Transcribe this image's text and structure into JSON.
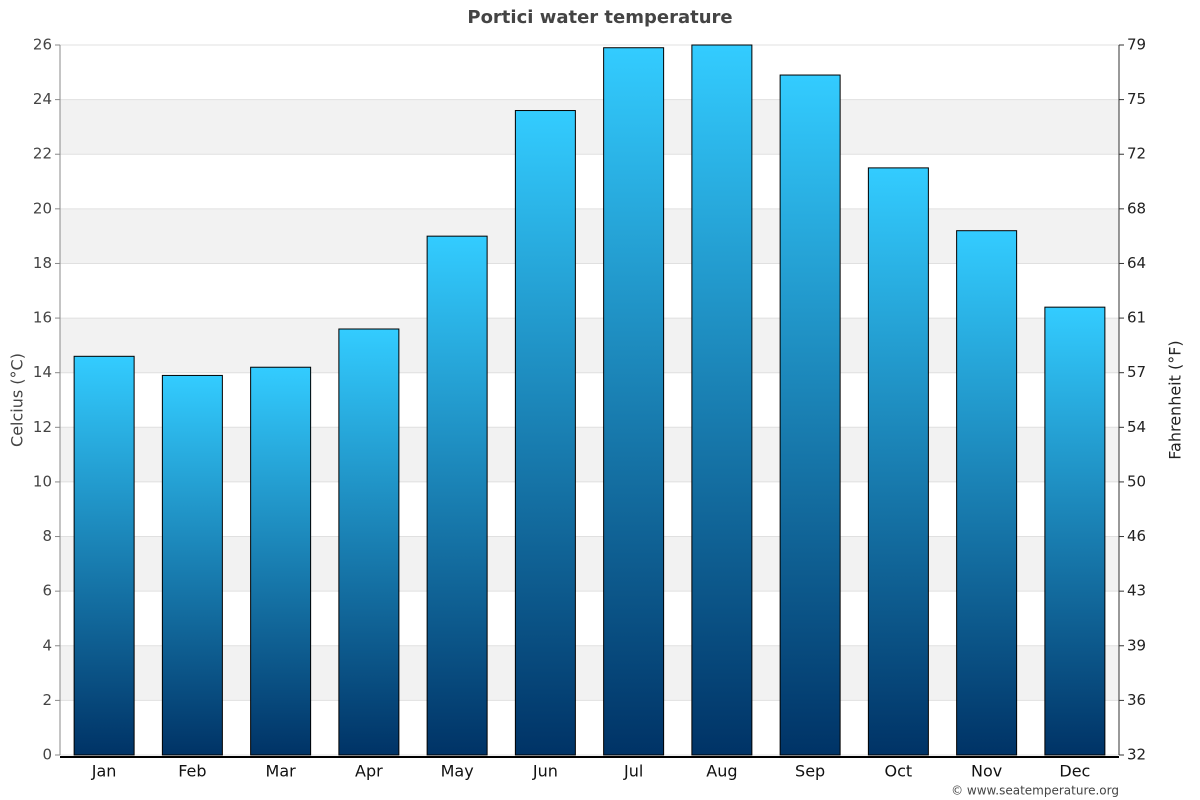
{
  "chart_data": {
    "type": "bar",
    "title": "Portici water temperature",
    "categories": [
      "Jan",
      "Feb",
      "Mar",
      "Apr",
      "May",
      "Jun",
      "Jul",
      "Aug",
      "Sep",
      "Oct",
      "Nov",
      "Dec"
    ],
    "values": [
      14.6,
      13.9,
      14.2,
      15.6,
      19.0,
      23.6,
      25.9,
      26.0,
      24.9,
      21.5,
      19.2,
      16.4
    ],
    "color": [
      "#33ccff",
      "#003366"
    ],
    "y_label": "Celcius (°C)",
    "y2_label": "Fahrenheit (°F)",
    "ylim": [
      0,
      26
    ],
    "yticks": [
      0,
      2,
      4,
      6,
      8,
      10,
      12,
      14,
      16,
      18,
      20,
      22,
      24,
      26
    ],
    "y2lim": [
      32,
      78.8
    ],
    "y2ticks": [
      32,
      {
        "value": 35.6,
        "label": "36"
      },
      {
        "value": 39.2,
        "label": "39"
      },
      {
        "value": 42.8,
        "label": "43"
      },
      {
        "value": 46.4,
        "label": "46"
      },
      50,
      {
        "value": 53.6,
        "label": "54"
      },
      {
        "value": 57.2,
        "label": "57"
      },
      {
        "value": 60.8,
        "label": "61"
      },
      {
        "value": 64.4,
        "label": "64"
      },
      68,
      {
        "value": 71.6,
        "label": "72"
      },
      {
        "value": 75.2,
        "label": "75"
      },
      {
        "value": 78.8,
        "label": "79"
      }
    ],
    "grid": true,
    "credit": "© www.seatemperature.org"
  }
}
